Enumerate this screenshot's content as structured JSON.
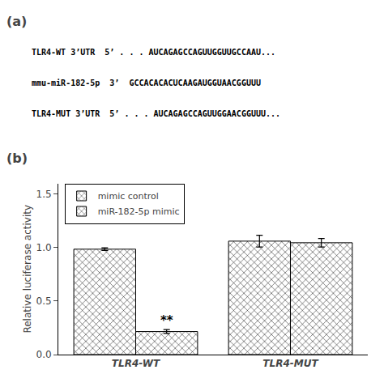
{
  "chart_data": {
    "type": "bar",
    "text_lines": [
      "TLR4-WT 3’UTR  5’ . . . AUCAGAGCCAGUUGGUUGCCAAU...",
      "mmu-miR-182-5p  3’  GCCACACACUCAAGAUGGUAACGGUUU",
      "TLR4-MUT 3’UTR  5’ . . . AUCAGAGCCAGUUGGAACGGUUU..."
    ],
    "panel_labels": [
      "(a)",
      "(b)"
    ],
    "categories": [
      "TLR4-WT",
      "TLR4-MUT"
    ],
    "series": [
      {
        "name": "mimic control",
        "color": "#555555",
        "values": [
          0.985,
          1.06
        ],
        "errors": [
          0.012,
          0.055
        ]
      },
      {
        "name": "miR-182-5p mimic",
        "color": "#b8b8b8",
        "values": [
          0.215,
          1.045
        ],
        "errors": [
          0.018,
          0.04
        ]
      }
    ],
    "annotations": [
      {
        "text": "**",
        "category": "TLR4-WT",
        "series": "miR-182-5p mimic"
      }
    ],
    "ylabel": "Relative luciferase activity",
    "ylim": [
      0.0,
      1.6
    ],
    "yticks": [
      {
        "value": 0.0,
        "label": "0.0"
      },
      0.5,
      {
        "value": 1.0,
        "label": "1.0"
      },
      1.5
    ],
    "legend": "upper left",
    "grid": false
  }
}
